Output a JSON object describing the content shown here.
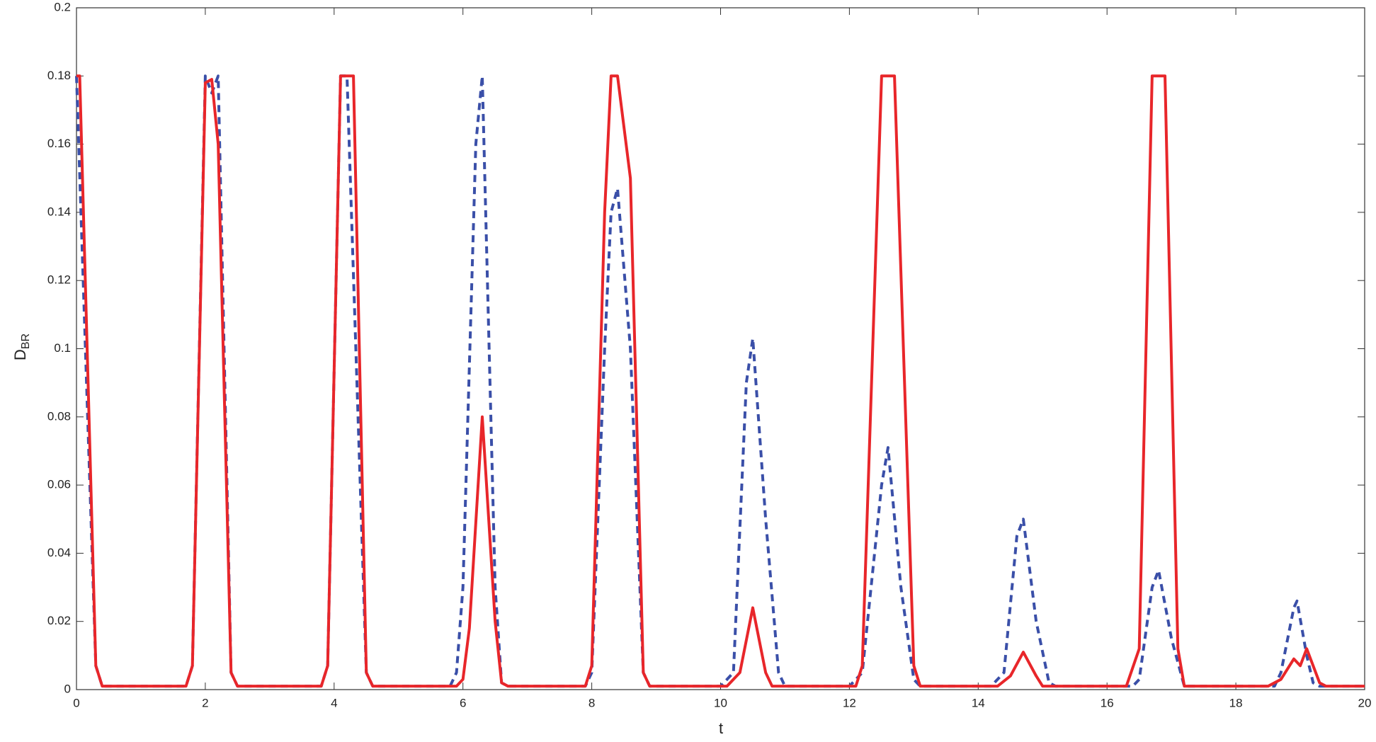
{
  "chart_data": {
    "type": "line",
    "xlabel": "t",
    "ylabel": {
      "main": "D",
      "subscript": "BR"
    },
    "xlim": [
      0,
      20
    ],
    "ylim": [
      0,
      0.2
    ],
    "xticks": [
      0,
      2,
      4,
      6,
      8,
      10,
      12,
      14,
      16,
      18,
      20
    ],
    "yticks": [
      0,
      0.02,
      0.04,
      0.06,
      0.08,
      0.1,
      0.12,
      0.14,
      0.16,
      0.18,
      0.2
    ],
    "series": [
      {
        "color": "#e8262a",
        "dash": false,
        "x": [
          0,
          0.05,
          0.3,
          0.4,
          1.7,
          1.8,
          2.0,
          2.1,
          2.2,
          2.4,
          2.5,
          3.8,
          3.9,
          4.1,
          4.3,
          4.5,
          4.6,
          5.9,
          6.0,
          6.1,
          6.3,
          6.5,
          6.6,
          6.7,
          7.9,
          8.0,
          8.2,
          8.3,
          8.4,
          8.6,
          8.8,
          8.9,
          10.1,
          10.3,
          10.5,
          10.7,
          10.8,
          12.1,
          12.2,
          12.5,
          12.7,
          13.0,
          13.1,
          14.3,
          14.5,
          14.7,
          14.9,
          15.0,
          16.3,
          16.5,
          16.7,
          16.9,
          17.1,
          17.2,
          18.5,
          18.7,
          18.9,
          19.0,
          19.1,
          19.3,
          19.4,
          20
        ],
        "values": [
          0.18,
          0.18,
          0.007,
          0.001,
          0.001,
          0.007,
          0.178,
          0.179,
          0.16,
          0.005,
          0.001,
          0.001,
          0.007,
          0.18,
          0.18,
          0.005,
          0.001,
          0.001,
          0.003,
          0.018,
          0.08,
          0.02,
          0.002,
          0.001,
          0.001,
          0.007,
          0.14,
          0.18,
          0.18,
          0.15,
          0.005,
          0.001,
          0.001,
          0.005,
          0.024,
          0.005,
          0.001,
          0.001,
          0.007,
          0.18,
          0.18,
          0.007,
          0.001,
          0.001,
          0.004,
          0.011,
          0.004,
          0.001,
          0.001,
          0.012,
          0.18,
          0.18,
          0.012,
          0.001,
          0.001,
          0.003,
          0.009,
          0.007,
          0.012,
          0.002,
          0.001,
          0.001
        ]
      },
      {
        "color": "#3a4fa8",
        "dash": true,
        "x": [
          0,
          0.3,
          0.4,
          1.7,
          1.8,
          2.0,
          2.1,
          2.2,
          2.4,
          2.5,
          3.8,
          3.9,
          4.1,
          4.2,
          4.5,
          4.6,
          5.8,
          5.9,
          6.0,
          6.2,
          6.3,
          6.5,
          6.6,
          6.7,
          7.9,
          8.0,
          8.2,
          8.3,
          8.4,
          8.6,
          8.8,
          8.9,
          10.0,
          10.2,
          10.4,
          10.5,
          10.7,
          10.9,
          11.0,
          12.0,
          12.2,
          12.5,
          12.6,
          12.8,
          13.0,
          13.1,
          14.2,
          14.4,
          14.6,
          14.7,
          14.9,
          15.1,
          15.2,
          16.4,
          16.5,
          16.7,
          16.8,
          17.0,
          17.2,
          18.6,
          18.7,
          18.9,
          18.95,
          19.1,
          19.2,
          19.3,
          20
        ],
        "values": [
          0.18,
          0.007,
          0.001,
          0.001,
          0.007,
          0.18,
          0.175,
          0.18,
          0.005,
          0.001,
          0.001,
          0.007,
          0.18,
          0.18,
          0.005,
          0.001,
          0.001,
          0.005,
          0.03,
          0.16,
          0.18,
          0.03,
          0.002,
          0.001,
          0.001,
          0.005,
          0.1,
          0.14,
          0.147,
          0.1,
          0.005,
          0.001,
          0.001,
          0.005,
          0.09,
          0.103,
          0.05,
          0.005,
          0.001,
          0.001,
          0.005,
          0.06,
          0.071,
          0.03,
          0.003,
          0.001,
          0.001,
          0.005,
          0.045,
          0.05,
          0.02,
          0.002,
          0.001,
          0.001,
          0.003,
          0.03,
          0.035,
          0.015,
          0.001,
          0.001,
          0.005,
          0.024,
          0.026,
          0.01,
          0.002,
          0.001,
          0.001
        ]
      }
    ]
  }
}
